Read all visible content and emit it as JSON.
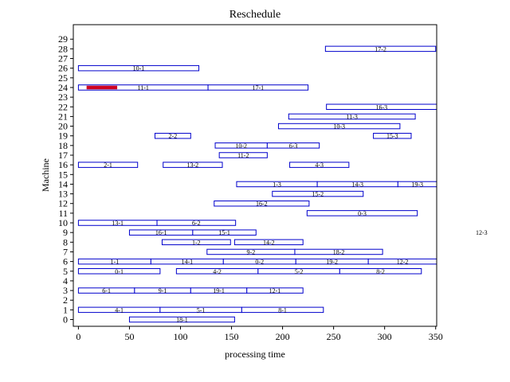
{
  "chart_data": {
    "type": "gantt",
    "title": "Reschedule",
    "xlabel": "processing time",
    "ylabel": "Machine",
    "xlim": [
      -5,
      351
    ],
    "ylim": [
      -0.7,
      30.5
    ],
    "xticks": [
      0,
      50,
      100,
      150,
      200,
      250,
      300,
      350
    ],
    "yticks": [
      0,
      1,
      2,
      3,
      4,
      5,
      6,
      7,
      8,
      9,
      10,
      11,
      12,
      13,
      14,
      15,
      16,
      17,
      18,
      19,
      20,
      21,
      22,
      23,
      24,
      25,
      26,
      27,
      28,
      29
    ],
    "grid": false,
    "bar_edge_color": "#0000cc",
    "highlight_color": "#cc0022",
    "tasks": [
      {
        "machine": 0,
        "start": 50,
        "end": 153,
        "label": "18-1"
      },
      {
        "machine": 1,
        "start": 0,
        "end": 80,
        "label": "4-1"
      },
      {
        "machine": 1,
        "start": 80,
        "end": 160,
        "label": "5-1"
      },
      {
        "machine": 1,
        "start": 160,
        "end": 240,
        "label": "8-1"
      },
      {
        "machine": 3,
        "start": 0,
        "end": 55,
        "label": "6-1"
      },
      {
        "machine": 3,
        "start": 55,
        "end": 110,
        "label": "9-1"
      },
      {
        "machine": 3,
        "start": 110,
        "end": 165,
        "label": "19-1"
      },
      {
        "machine": 3,
        "start": 165,
        "end": 220,
        "label": "12-1"
      },
      {
        "machine": 5,
        "start": 0,
        "end": 80,
        "label": "0-1"
      },
      {
        "machine": 5,
        "start": 96,
        "end": 176,
        "label": "4-2"
      },
      {
        "machine": 5,
        "start": 176,
        "end": 256,
        "label": "5-2"
      },
      {
        "machine": 5,
        "start": 256,
        "end": 336,
        "label": "8-2"
      },
      {
        "machine": 6,
        "start": 0,
        "end": 71,
        "label": "1-1"
      },
      {
        "machine": 6,
        "start": 71,
        "end": 142,
        "label": "14-1"
      },
      {
        "machine": 6,
        "start": 142,
        "end": 213,
        "label": "0-2"
      },
      {
        "machine": 6,
        "start": 213,
        "end": 284,
        "label": "19-2"
      },
      {
        "machine": 6,
        "start": 284,
        "end": 355,
        "label": "12-2"
      },
      {
        "machine": 7,
        "start": 126,
        "end": 212,
        "label": "9-2"
      },
      {
        "machine": 7,
        "start": 212,
        "end": 298,
        "label": "18-2"
      },
      {
        "machine": 8,
        "start": 82,
        "end": 149,
        "label": "1-2"
      },
      {
        "machine": 8,
        "start": 153,
        "end": 220,
        "label": "14-2"
      },
      {
        "machine": 9,
        "start": 50,
        "end": 112,
        "label": "16-1"
      },
      {
        "machine": 9,
        "start": 112,
        "end": 174,
        "label": "15-1"
      },
      {
        "machine": 10,
        "start": 0,
        "end": 77,
        "label": "13-1"
      },
      {
        "machine": 10,
        "start": 77,
        "end": 154,
        "label": "6-2"
      },
      {
        "machine": 11,
        "start": 224,
        "end": 332,
        "label": "0-3"
      },
      {
        "machine": 12,
        "start": 133,
        "end": 226,
        "label": "16-2"
      },
      {
        "machine": 13,
        "start": 190,
        "end": 279,
        "label": "15-2"
      },
      {
        "machine": 14,
        "start": 155,
        "end": 234,
        "label": "1-3"
      },
      {
        "machine": 14,
        "start": 234,
        "end": 313,
        "label": "14-3"
      },
      {
        "machine": 14,
        "start": 313,
        "end": 392,
        "label": "19-3"
      },
      {
        "machine": 16,
        "start": 0,
        "end": 58,
        "label": "2-1"
      },
      {
        "machine": 16,
        "start": 83,
        "end": 141,
        "label": "13-2"
      },
      {
        "machine": 16,
        "start": 207,
        "end": 265,
        "label": "4-3"
      },
      {
        "machine": 17,
        "start": 138,
        "end": 185,
        "label": "11-2"
      },
      {
        "machine": 18,
        "start": 134,
        "end": 185,
        "label": "10-2"
      },
      {
        "machine": 18,
        "start": 185,
        "end": 236,
        "label": "6-3"
      },
      {
        "machine": 19,
        "start": 75,
        "end": 110,
        "label": "2-2"
      },
      {
        "machine": 19,
        "start": 289,
        "end": 326,
        "label": "15-3"
      },
      {
        "machine": 20,
        "start": 196,
        "end": 315,
        "label": "10-3"
      },
      {
        "machine": 21,
        "start": 206,
        "end": 330,
        "label": "11-3"
      },
      {
        "machine": 22,
        "start": 243,
        "end": 370,
        "label": "16-3"
      },
      {
        "machine": 24,
        "start": 0,
        "end": 127,
        "label": "11-1"
      },
      {
        "machine": 24,
        "start": 127,
        "end": 225,
        "label": "17-1"
      },
      {
        "machine": 26,
        "start": 0,
        "end": 118,
        "label": "10-1"
      },
      {
        "machine": 28,
        "start": 242,
        "end": 350,
        "label": "17-2"
      }
    ],
    "highlights": [
      {
        "machine": 24,
        "start": 8,
        "end": 38
      }
    ],
    "annotations": [
      {
        "text": "12-3",
        "x": 395,
        "y": 9
      }
    ]
  }
}
